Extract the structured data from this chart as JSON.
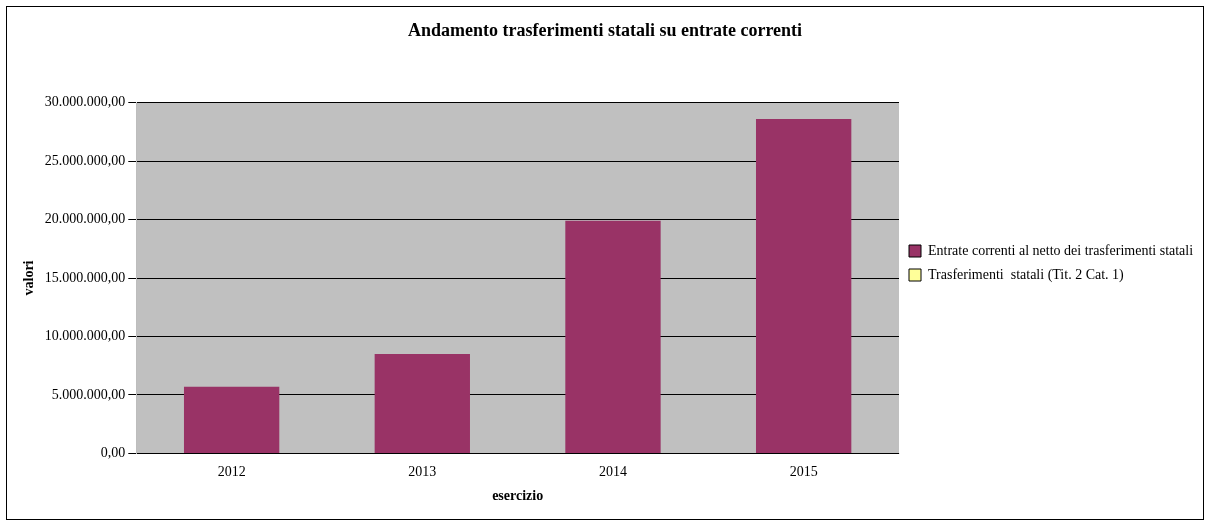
{
  "chart_data": {
    "type": "bar",
    "title": "Andamento trasferimenti statali su entrate correnti",
    "xlabel": "esercizio",
    "ylabel": "valori",
    "categories": [
      "2012",
      "2013",
      "2014",
      "2015"
    ],
    "series": [
      {
        "name": "Entrate correnti al netto dei trasferimenti statali",
        "color": "#993366",
        "values": [
          5700000,
          8500000,
          19900000,
          28600000
        ]
      },
      {
        "name": "Trasferimenti  statali (Tit. 2 Cat. 1)",
        "color": "#ffff99",
        "values": [
          0,
          0,
          0,
          0
        ]
      }
    ],
    "stacked": true,
    "ylim": [
      0,
      30000000
    ],
    "yticks": [
      {
        "value": 0,
        "label": "0,00"
      },
      {
        "value": 5000000,
        "label": "5.000.000,00"
      },
      {
        "value": 10000000,
        "label": "10.000.000,00"
      },
      {
        "value": 15000000,
        "label": "15.000.000,00"
      },
      {
        "value": 20000000,
        "label": "20.000.000,00"
      },
      {
        "value": 25000000,
        "label": "25.000.000,00"
      },
      {
        "value": 30000000,
        "label": "30.000.000,00"
      }
    ],
    "grid": "y",
    "legend": "right"
  }
}
